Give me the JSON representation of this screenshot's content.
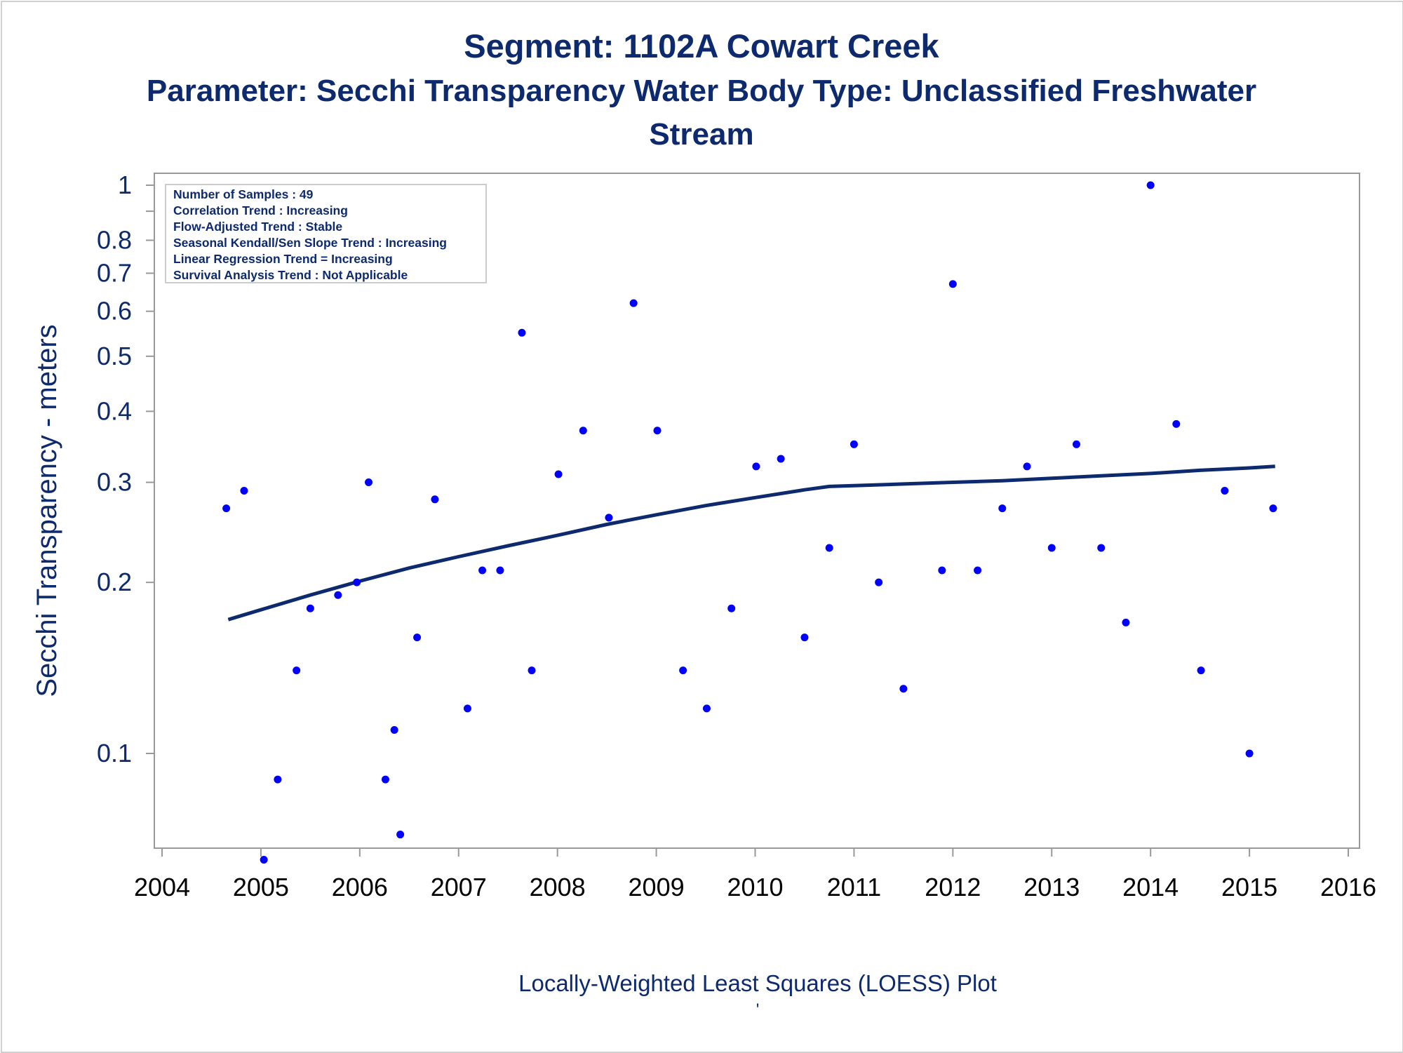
{
  "title": "Segment: 1102A  Cowart Creek",
  "subtitle_line1": "Parameter: Secchi Transparency   Water Body Type: Unclassified Freshwater",
  "subtitle_line2": "Stream",
  "footnote": "Locally-Weighted Least Squares (LOESS) Plot",
  "footnote_mark": "'",
  "colors": {
    "title": "#0e2a6e",
    "points": "#0000ff",
    "loess": "#0e2a6e",
    "frame": "#999999"
  },
  "inset": [
    "Number of Samples : 49",
    "Correlation Trend : Increasing",
    "Flow-Adjusted Trend : Stable",
    "Seasonal Kendall/Sen Slope Trend : Increasing",
    "Linear Regression Trend = Increasing",
    "Survival Analysis Trend : Not Applicable"
  ],
  "chart_data": {
    "type": "scatter",
    "ylabel": "Secchi Transparency - meters",
    "yscale": "log",
    "xlim": [
      2004,
      2016
    ],
    "ylim": [
      0.065,
      1.02
    ],
    "x_ticks": [
      "2004",
      "2005",
      "2006",
      "2007",
      "2008",
      "2009",
      "2010",
      "2011",
      "2012",
      "2013",
      "2014",
      "2015",
      "2016"
    ],
    "y_ticks": [
      {
        "value": 0.1,
        "label": "0.1"
      },
      {
        "value": 0.2,
        "label": "0.2"
      },
      {
        "value": 0.3,
        "label": "0.3"
      },
      {
        "value": 0.4,
        "label": "0.4"
      },
      {
        "value": 0.5,
        "label": "0.5"
      },
      {
        "value": 0.6,
        "label": "0.6"
      },
      {
        "value": 0.7,
        "label": "0.7"
      },
      {
        "value": 0.8,
        "label": "0.8"
      },
      {
        "value": 0.9,
        "label": ""
      },
      {
        "value": 1.0,
        "label": "1"
      }
    ],
    "points": [
      [
        2004.65,
        0.27
      ],
      [
        2004.83,
        0.29
      ],
      [
        2005.03,
        0.065
      ],
      [
        2005.17,
        0.09
      ],
      [
        2005.36,
        0.14
      ],
      [
        2005.5,
        0.18
      ],
      [
        2005.78,
        0.19
      ],
      [
        2005.97,
        0.2
      ],
      [
        2006.09,
        0.3
      ],
      [
        2006.26,
        0.09
      ],
      [
        2006.35,
        0.11
      ],
      [
        2006.41,
        0.072
      ],
      [
        2006.58,
        0.16
      ],
      [
        2006.76,
        0.28
      ],
      [
        2007.09,
        0.12
      ],
      [
        2007.24,
        0.21
      ],
      [
        2007.42,
        0.21
      ],
      [
        2007.64,
        0.55
      ],
      [
        2007.74,
        0.14
      ],
      [
        2008.01,
        0.31
      ],
      [
        2008.26,
        0.37
      ],
      [
        2008.52,
        0.26
      ],
      [
        2008.77,
        0.62
      ],
      [
        2009.01,
        0.37
      ],
      [
        2009.27,
        0.14
      ],
      [
        2009.51,
        0.12
      ],
      [
        2009.76,
        0.18
      ],
      [
        2010.01,
        0.32
      ],
      [
        2010.26,
        0.33
      ],
      [
        2010.5,
        0.16
      ],
      [
        2010.75,
        0.23
      ],
      [
        2011.0,
        0.35
      ],
      [
        2011.25,
        0.2
      ],
      [
        2011.5,
        0.13
      ],
      [
        2011.89,
        0.21
      ],
      [
        2012.0,
        0.67
      ],
      [
        2012.25,
        0.21
      ],
      [
        2012.5,
        0.27
      ],
      [
        2012.75,
        0.32
      ],
      [
        2013.0,
        0.23
      ],
      [
        2013.25,
        0.35
      ],
      [
        2013.5,
        0.23
      ],
      [
        2013.75,
        0.17
      ],
      [
        2014.0,
        1.0
      ],
      [
        2014.26,
        0.38
      ],
      [
        2014.51,
        0.14
      ],
      [
        2014.75,
        0.29
      ],
      [
        2015.0,
        0.1
      ],
      [
        2015.24,
        0.27
      ]
    ],
    "loess": [
      [
        2004.67,
        0.172
      ],
      [
        2005.0,
        0.179
      ],
      [
        2005.5,
        0.19
      ],
      [
        2006.0,
        0.201
      ],
      [
        2006.5,
        0.212
      ],
      [
        2007.0,
        0.222
      ],
      [
        2007.5,
        0.232
      ],
      [
        2008.0,
        0.242
      ],
      [
        2008.5,
        0.253
      ],
      [
        2009.0,
        0.263
      ],
      [
        2009.5,
        0.273
      ],
      [
        2010.0,
        0.282
      ],
      [
        2010.5,
        0.291
      ],
      [
        2010.75,
        0.295
      ],
      [
        2011.0,
        0.296
      ],
      [
        2011.5,
        0.298
      ],
      [
        2012.0,
        0.3
      ],
      [
        2012.5,
        0.302
      ],
      [
        2013.0,
        0.305
      ],
      [
        2013.5,
        0.308
      ],
      [
        2014.0,
        0.311
      ],
      [
        2014.5,
        0.315
      ],
      [
        2015.0,
        0.318
      ],
      [
        2015.26,
        0.32
      ]
    ]
  }
}
